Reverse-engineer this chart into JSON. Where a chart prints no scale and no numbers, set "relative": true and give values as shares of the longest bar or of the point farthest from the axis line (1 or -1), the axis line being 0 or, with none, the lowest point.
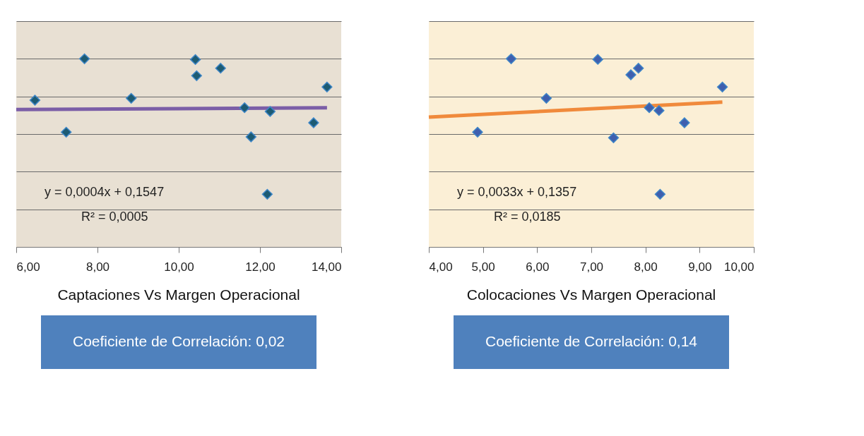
{
  "chart_data": [
    {
      "type": "scatter",
      "title": "Captaciones Vs Margen Operacional",
      "relative": true,
      "grid": "y",
      "xlim": [
        6,
        14
      ],
      "xticks": [
        {
          "value": 6,
          "label": "6,00"
        },
        {
          "value": 8,
          "label": "8,00"
        },
        {
          "value": 10,
          "label": "10,00"
        },
        {
          "value": 12,
          "label": "12,00"
        },
        {
          "value": 14,
          "label": "14,00"
        }
      ],
      "annotations": [
        "y = 0,0004x + 0,1547",
        "R² = 0,0005",
        "Coeficiente de Correlación: 0,02"
      ],
      "series": [
        {
          "marker": "diamond",
          "color": "#1d5b73",
          "x": [
            6.46,
            7.23,
            7.68,
            8.83,
            10.41,
            10.44,
            11.03,
            11.62,
            11.78,
            12.18,
            12.25,
            13.32,
            13.65
          ],
          "values": [
            0.78,
            0.61,
            1.0,
            0.79,
            0.996,
            0.91,
            0.95,
            0.74,
            0.585,
            0.28,
            0.72,
            0.66,
            0.85
          ]
        },
        {
          "type": "line",
          "color": "#7b5ea7",
          "x": [
            6.0,
            13.65
          ],
          "values": [
            0.73,
            0.74
          ]
        }
      ]
    },
    {
      "type": "scatter",
      "title": "Colocaciones Vs Margen Operacional",
      "relative": true,
      "grid": "y",
      "xlim": [
        4,
        10
      ],
      "xticks": [
        {
          "value": 4,
          "label": "4,00"
        },
        {
          "value": 5,
          "label": "5,00"
        },
        {
          "value": 6,
          "label": "6,00"
        },
        {
          "value": 7,
          "label": "7,00"
        },
        {
          "value": 8,
          "label": "8,00"
        },
        {
          "value": 9,
          "label": "9,00"
        },
        {
          "value": 10,
          "label": "10,00"
        }
      ],
      "annotations": [
        "y = 0,0033x + 0,1357",
        "R² = 0,0185",
        "Coeficiente de Correlación: 0,14"
      ],
      "series": [
        {
          "marker": "diamond",
          "color": "#3f5fae",
          "x": [
            4.9,
            5.52,
            6.17,
            7.12,
            7.41,
            7.73,
            7.87,
            8.07,
            8.25,
            8.27,
            8.72,
            9.42
          ],
          "values": [
            0.61,
            1.0,
            0.79,
            0.997,
            0.58,
            0.915,
            0.95,
            0.74,
            0.725,
            0.28,
            0.66,
            0.85
          ]
        },
        {
          "type": "line",
          "color": "#f08a3c",
          "x": [
            4.0,
            9.42
          ],
          "values": [
            0.69,
            0.77
          ]
        }
      ]
    }
  ]
}
